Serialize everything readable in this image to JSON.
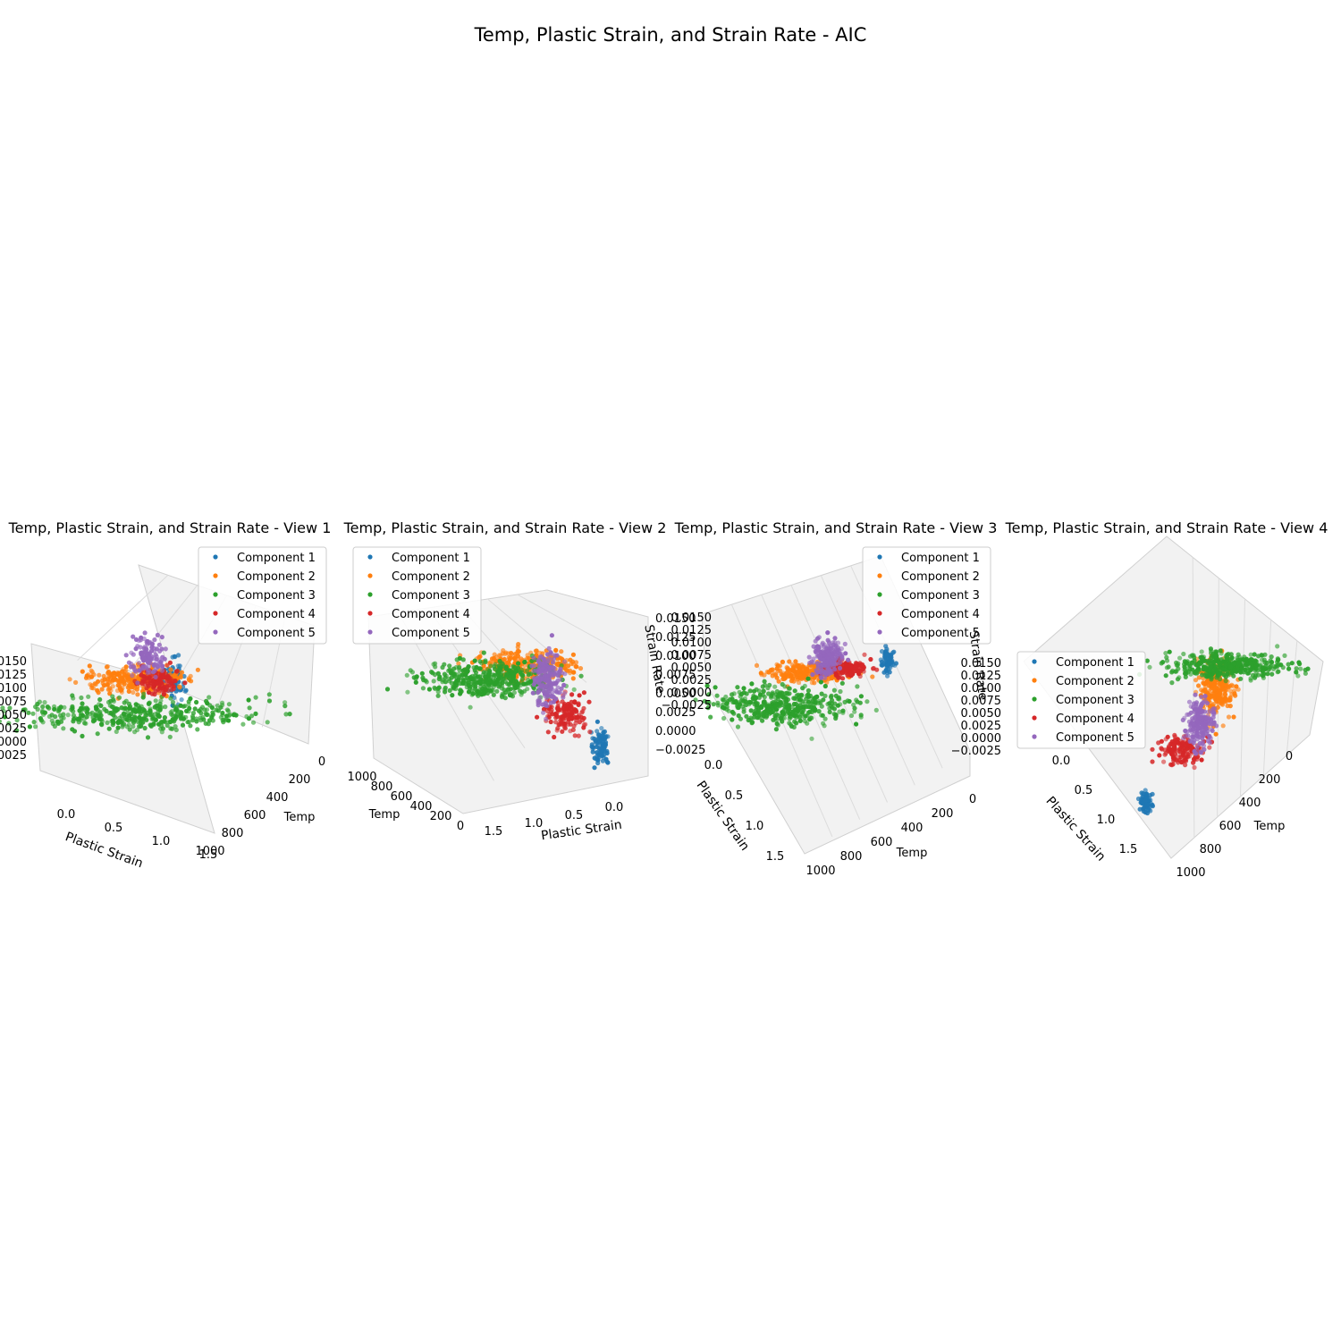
{
  "figure": {
    "suptitle": "Temp, Plastic Strain, and Strain Rate - AIC"
  },
  "legend_labels": [
    "Component 1",
    "Component 2",
    "Component 3",
    "Component 4",
    "Component 5"
  ],
  "colors": [
    "#1f77b4",
    "#ff7f0e",
    "#2ca02c",
    "#d62728",
    "#9467bd"
  ],
  "chart_data": [
    {
      "type": "scatter",
      "title": "Temp, Plastic Strain, and Strain Rate - View 1",
      "xlabel": "Temp",
      "ylabel": "Plastic Strain",
      "zlabel": "",
      "x_ticks": [
        "0",
        "200",
        "400",
        "600",
        "800",
        "1000"
      ],
      "y_ticks": [
        "0.0",
        "0.5",
        "1.0",
        "1.5"
      ],
      "z_ticks": [
        "0.0150",
        "0.0125",
        "0.0100",
        "0.0075",
        "0.0050",
        "0.0025",
        "0.0000",
        "−0.0025"
      ],
      "legend": "upper-right",
      "series": [
        {
          "name": "Component 1",
          "center": {
            "temp": 80,
            "plastic_strain": 0.05,
            "strain_rate": 0.006
          }
        },
        {
          "name": "Component 2",
          "center": {
            "temp": 600,
            "plastic_strain": 0.25,
            "strain_rate": 0.007
          }
        },
        {
          "name": "Component 3",
          "center": {
            "temp": 900,
            "plastic_strain": 1.0,
            "strain_rate": 0.001
          }
        },
        {
          "name": "Component 4",
          "center": {
            "temp": 300,
            "plastic_strain": 0.4,
            "strain_rate": 0.004
          }
        },
        {
          "name": "Component 5",
          "center": {
            "temp": 450,
            "plastic_strain": 0.6,
            "strain_rate": 0.009
          }
        }
      ]
    },
    {
      "type": "scatter",
      "title": "Temp, Plastic Strain, and Strain Rate - View 2",
      "xlabel": "Temp",
      "ylabel": "Plastic Strain",
      "zlabel": "Strain Rate",
      "x_ticks": [
        "1000",
        "800",
        "600",
        "400",
        "200",
        "0"
      ],
      "y_ticks": [
        "1.5",
        "1.0",
        "0.5",
        "0.0"
      ],
      "z_ticks": [
        "0.0150",
        "0.0125",
        "0.0100",
        "0.0075",
        "0.0050",
        "0.0025",
        "0.0000",
        "−0.0025"
      ],
      "legend": "upper-left",
      "series": [
        {
          "name": "Component 1"
        },
        {
          "name": "Component 2"
        },
        {
          "name": "Component 3"
        },
        {
          "name": "Component 4"
        },
        {
          "name": "Component 5"
        }
      ]
    },
    {
      "type": "scatter",
      "title": "Temp, Plastic Strain, and Strain Rate - View 3",
      "xlabel": "Temp",
      "ylabel": "Plastic Strain",
      "zlabel": "",
      "x_ticks": [
        "1000",
        "800",
        "600",
        "400",
        "200",
        "0"
      ],
      "y_ticks": [
        "0.0",
        "0.5",
        "1.0",
        "1.5"
      ],
      "z_ticks": [
        "0.0150",
        "0.0125",
        "0.0100",
        "0.0075",
        "0.0050",
        "0.0025",
        "0.0000",
        "−0.0025"
      ],
      "legend": "upper-right",
      "series": [
        {
          "name": "Component 1"
        },
        {
          "name": "Component 2"
        },
        {
          "name": "Component 3"
        },
        {
          "name": "Component 4"
        },
        {
          "name": "Component 5"
        }
      ]
    },
    {
      "type": "scatter",
      "title": "Temp, Plastic Strain, and Strain Rate - View 4",
      "xlabel": "Temp",
      "ylabel": "Plastic Strain",
      "zlabel": "Strain Rate",
      "x_ticks": [
        "1000",
        "800",
        "600",
        "400",
        "200",
        "0"
      ],
      "y_ticks": [
        "1.5",
        "1.0",
        "0.5",
        "0.0"
      ],
      "z_ticks": [
        "0.0150",
        "0.0125",
        "0.0100",
        "0.0075",
        "0.0050",
        "0.0025",
        "0.0000",
        "−0.0025"
      ],
      "legend": "left",
      "series": [
        {
          "name": "Component 1"
        },
        {
          "name": "Component 2"
        },
        {
          "name": "Component 3"
        },
        {
          "name": "Component 4"
        },
        {
          "name": "Component 5"
        }
      ]
    }
  ]
}
